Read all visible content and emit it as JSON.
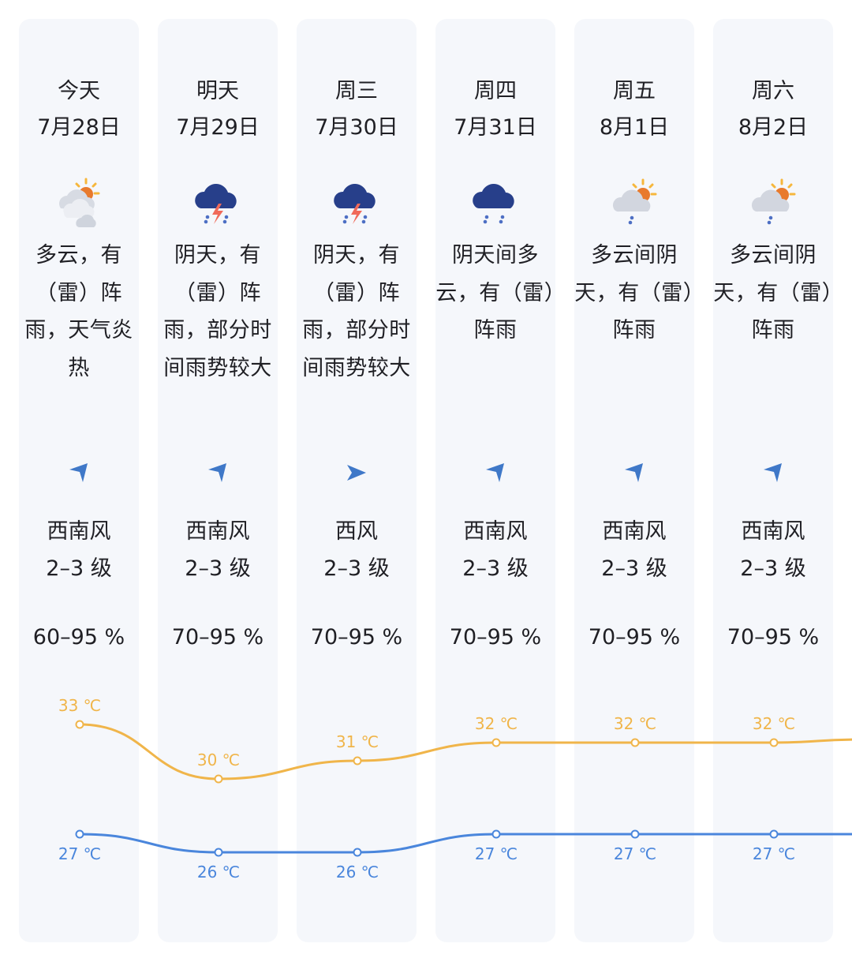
{
  "colors": {
    "column_bg": "#f5f7fb",
    "text": "#1f1f24",
    "high_line": "#f0b54a",
    "low_line": "#4a86dc",
    "wind_arrow": "#3f78c8"
  },
  "temp_unit": "℃",
  "forecast": [
    {
      "day": "今天",
      "date": "7月28日",
      "icon": "sun-cloud-rain-icon",
      "desc": "多云，有（雷）阵雨，天气炎热",
      "wind_dir": "西南风",
      "wind_level": "2–3 级",
      "wind_arrow_dir": "southwest",
      "humidity": "60–95 %",
      "high": 33,
      "low": 27
    },
    {
      "day": "明天",
      "date": "7月29日",
      "icon": "thunderstorm-icon",
      "desc": "阴天，有（雷）阵雨，部分时间雨势较大",
      "wind_dir": "西南风",
      "wind_level": "2–3 级",
      "wind_arrow_dir": "southwest",
      "humidity": "70–95 %",
      "high": 30,
      "low": 26
    },
    {
      "day": "周三",
      "date": "7月30日",
      "icon": "thunderstorm-icon",
      "desc": "阴天，有（雷）阵雨，部分时间雨势较大",
      "wind_dir": "西风",
      "wind_level": "2–3 级",
      "wind_arrow_dir": "west",
      "humidity": "70–95 %",
      "high": 31,
      "low": 26
    },
    {
      "day": "周四",
      "date": "7月31日",
      "icon": "cloud-rain-icon",
      "desc": "阴天间多云，有（雷）阵雨",
      "wind_dir": "西南风",
      "wind_level": "2–3 级",
      "wind_arrow_dir": "southwest",
      "humidity": "70–95 %",
      "high": 32,
      "low": 27
    },
    {
      "day": "周五",
      "date": "8月1日",
      "icon": "sun-cloud-rain-icon",
      "desc": "多云间阴天，有（雷）阵雨",
      "wind_dir": "西南风",
      "wind_level": "2–3 级",
      "wind_arrow_dir": "southwest",
      "humidity": "70–95 %",
      "high": 32,
      "low": 27
    },
    {
      "day": "周六",
      "date": "8月2日",
      "icon": "sun-cloud-rain-icon",
      "desc": "多云间阴天，有（雷）阵雨",
      "wind_dir": "西南风",
      "wind_level": "2–3 级",
      "wind_arrow_dir": "southwest",
      "humidity": "70–95 %",
      "high": 32,
      "low": 27
    }
  ]
}
